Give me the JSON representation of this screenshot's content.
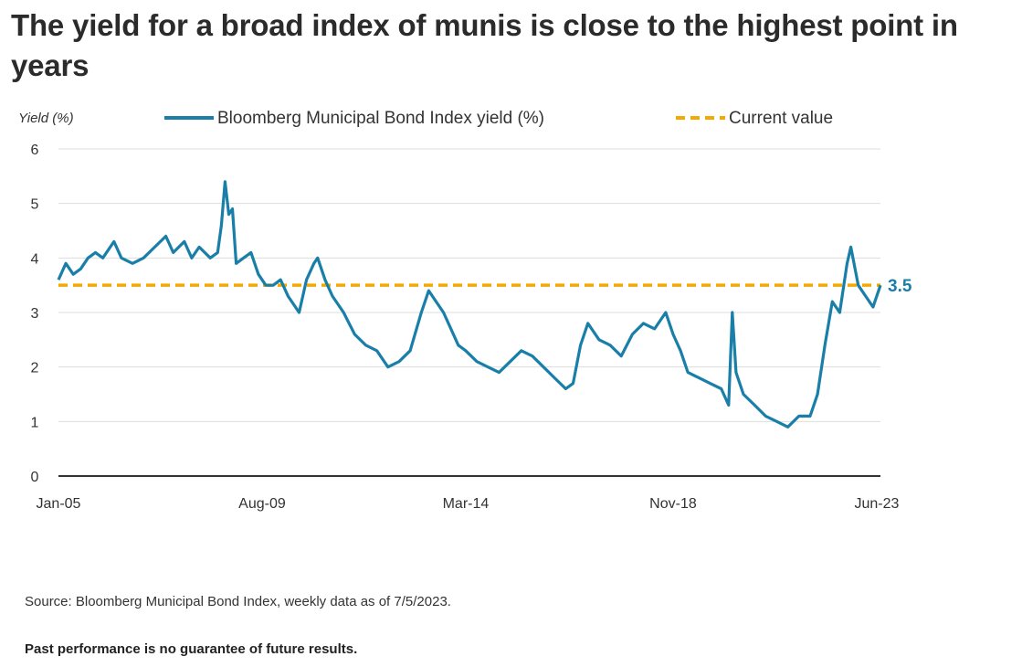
{
  "title": "The yield for a broad index of munis is close to the highest point in years",
  "source_note": "Source: Bloomberg Municipal Bond Index, weekly data as of 7/5/2023.",
  "disclaimer": "Past performance is no guarantee of future results.",
  "colors": {
    "series": "#1a7fa8",
    "current": "#f2a900",
    "grid": "#dddddd",
    "axis": "#333333"
  },
  "chart_data": {
    "type": "line",
    "ylabel": "Yield (%)",
    "ylim": [
      0,
      6
    ],
    "yticks": [
      0,
      1,
      2,
      3,
      4,
      5,
      6
    ],
    "xlim": [
      "2005-01",
      "2023-07"
    ],
    "xticks": [
      {
        "label": "Jan-05",
        "date": "2005-01"
      },
      {
        "label": "Aug-09",
        "date": "2009-08"
      },
      {
        "label": "Mar-14",
        "date": "2014-03"
      },
      {
        "label": "Nov-18",
        "date": "2018-11"
      },
      {
        "label": "Jun-23",
        "date": "2023-06"
      }
    ],
    "grid": true,
    "legend_position": "top",
    "series": [
      {
        "name": "Bloomberg Municipal Bond Index yield (%)",
        "style": "solid",
        "x": [
          "2005-01",
          "2005-03",
          "2005-05",
          "2005-07",
          "2005-09",
          "2005-11",
          "2006-01",
          "2006-04",
          "2006-06",
          "2006-09",
          "2006-12",
          "2007-03",
          "2007-06",
          "2007-08",
          "2007-11",
          "2008-01",
          "2008-03",
          "2008-06",
          "2008-08",
          "2008-09",
          "2008-10",
          "2008-11",
          "2008-12",
          "2009-01",
          "2009-03",
          "2009-05",
          "2009-07",
          "2009-09",
          "2009-11",
          "2010-01",
          "2010-03",
          "2010-06",
          "2010-08",
          "2010-10",
          "2010-11",
          "2011-01",
          "2011-03",
          "2011-06",
          "2011-09",
          "2011-12",
          "2012-03",
          "2012-06",
          "2012-09",
          "2012-12",
          "2013-03",
          "2013-05",
          "2013-07",
          "2013-09",
          "2013-11",
          "2014-01",
          "2014-03",
          "2014-06",
          "2014-09",
          "2014-12",
          "2015-03",
          "2015-06",
          "2015-09",
          "2015-12",
          "2016-03",
          "2016-06",
          "2016-08",
          "2016-10",
          "2016-12",
          "2017-03",
          "2017-06",
          "2017-09",
          "2017-12",
          "2018-03",
          "2018-06",
          "2018-09",
          "2018-11",
          "2019-01",
          "2019-03",
          "2019-06",
          "2019-09",
          "2019-12",
          "2020-02",
          "2020-03",
          "2020-04",
          "2020-06",
          "2020-09",
          "2020-12",
          "2021-03",
          "2021-06",
          "2021-09",
          "2021-12",
          "2022-02",
          "2022-04",
          "2022-06",
          "2022-08",
          "2022-10",
          "2022-11",
          "2023-01",
          "2023-03",
          "2023-05",
          "2023-07"
        ],
        "y": [
          3.6,
          3.9,
          3.7,
          3.8,
          4.0,
          4.1,
          4.0,
          4.3,
          4.0,
          3.9,
          4.0,
          4.2,
          4.4,
          4.1,
          4.3,
          4.0,
          4.2,
          4.0,
          4.1,
          4.6,
          5.4,
          4.8,
          4.9,
          3.9,
          4.0,
          4.1,
          3.7,
          3.5,
          3.5,
          3.6,
          3.3,
          3.0,
          3.6,
          3.9,
          4.0,
          3.6,
          3.3,
          3.0,
          2.6,
          2.4,
          2.3,
          2.0,
          2.1,
          2.3,
          3.0,
          3.4,
          3.2,
          3.0,
          2.7,
          2.4,
          2.3,
          2.1,
          2.0,
          1.9,
          2.1,
          2.3,
          2.2,
          2.0,
          1.8,
          1.6,
          1.7,
          2.4,
          2.8,
          2.5,
          2.4,
          2.2,
          2.6,
          2.8,
          2.7,
          3.0,
          2.6,
          2.3,
          1.9,
          1.8,
          1.7,
          1.6,
          1.3,
          3.0,
          1.9,
          1.5,
          1.3,
          1.1,
          1.0,
          0.9,
          1.1,
          1.1,
          1.5,
          2.4,
          3.2,
          3.0,
          3.9,
          4.2,
          3.5,
          3.3,
          3.1,
          3.5
        ]
      },
      {
        "name": "Current value",
        "style": "dashed",
        "value": 3.5,
        "label": "3.5"
      }
    ]
  }
}
